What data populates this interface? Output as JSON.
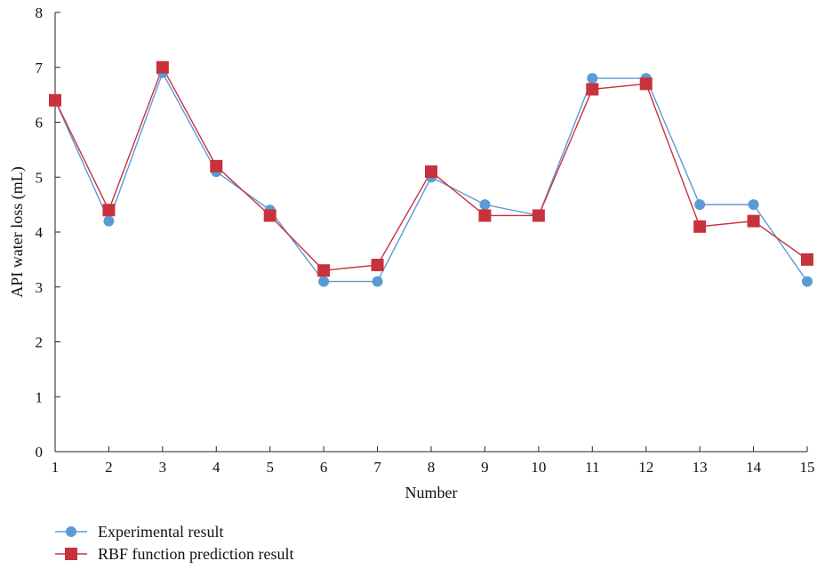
{
  "chart_data": {
    "type": "line",
    "title": "",
    "xlabel": "Number",
    "ylabel": "API water loss (mL)",
    "x": [
      1,
      2,
      3,
      4,
      5,
      6,
      7,
      8,
      9,
      10,
      11,
      12,
      13,
      14,
      15
    ],
    "x_tick_labels": [
      "1",
      "2",
      "3",
      "4",
      "5",
      "6",
      "7",
      "8",
      "9",
      "10",
      "11",
      "12",
      "13",
      "14",
      "15"
    ],
    "y_tick_labels": [
      "0",
      "1",
      "2",
      "3",
      "4",
      "5",
      "6",
      "7",
      "8"
    ],
    "xlim": [
      1,
      15
    ],
    "ylim": [
      0,
      8
    ],
    "grid": false,
    "legend_position": "bottom-left",
    "series": [
      {
        "name": "Experimental result",
        "marker": "circle",
        "color": "#5b9bd5",
        "values": [
          6.4,
          4.2,
          6.9,
          5.1,
          4.4,
          3.1,
          3.1,
          5.0,
          4.5,
          4.3,
          6.8,
          6.8,
          4.5,
          4.5,
          3.1
        ]
      },
      {
        "name": "RBF function prediction result",
        "marker": "square",
        "color": "#c8323c",
        "values": [
          6.4,
          4.4,
          7.0,
          5.2,
          4.3,
          3.3,
          3.4,
          5.1,
          4.3,
          4.3,
          6.6,
          6.7,
          4.1,
          4.2,
          3.5
        ]
      }
    ]
  }
}
